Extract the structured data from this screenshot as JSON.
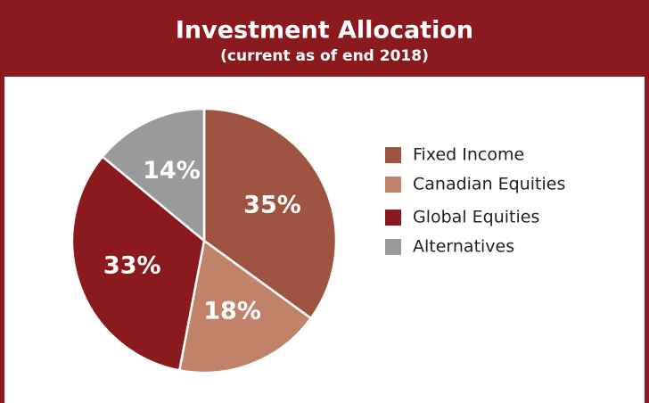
{
  "chart_data": {
    "type": "pie",
    "title": "Investment Allocation",
    "subtitle": "(current as of end 2018)",
    "categories": [
      "Fixed Income",
      "Canadian Equities",
      "Global Equities",
      "Alternatives"
    ],
    "values": [
      35,
      18,
      33,
      14
    ],
    "value_labels": [
      "35%",
      "18%",
      "33%",
      "14%"
    ],
    "colors": [
      "#9e5441",
      "#c0836a",
      "#8b1a1e",
      "#9a9a9c"
    ],
    "legend": "right"
  }
}
